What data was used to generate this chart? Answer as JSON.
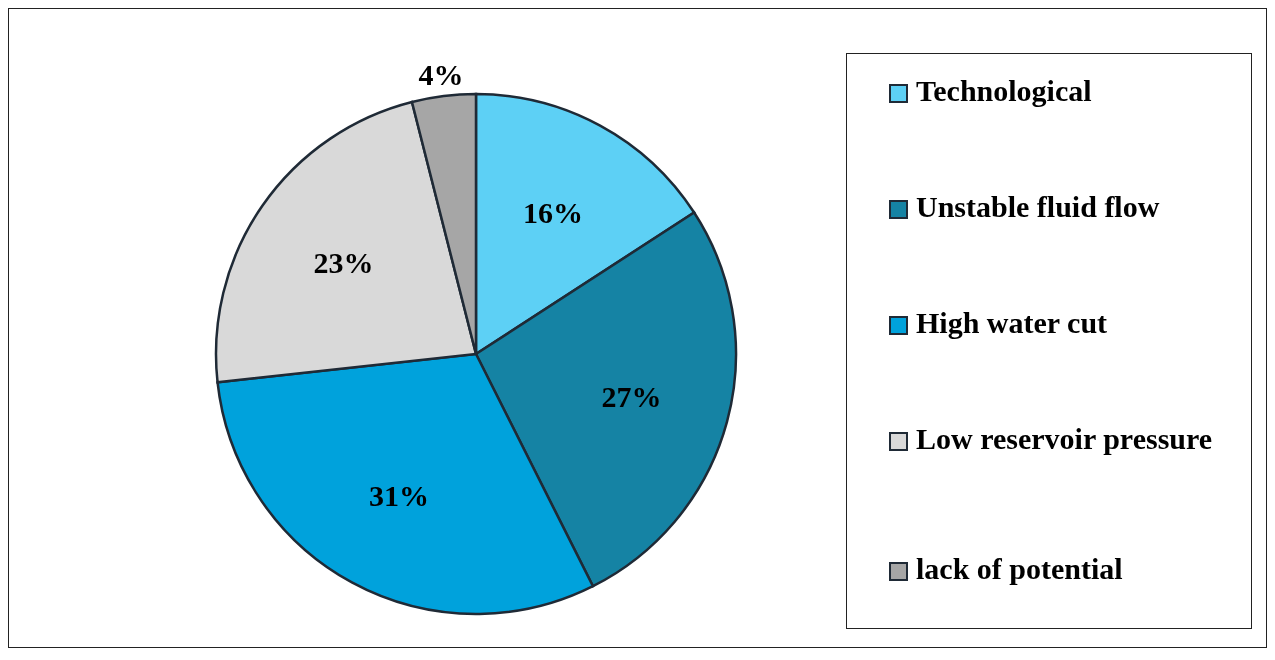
{
  "chart_data": {
    "type": "pie",
    "categories": [
      "Technological",
      "Unstable fluid flow",
      "High water cut",
      "Low reservoir pressure",
      "lack of potential"
    ],
    "values": [
      16,
      27,
      31,
      23,
      4
    ],
    "colors": [
      "#5dd0f5",
      "#1583a4",
      "#00a2dc",
      "#d9d9d9",
      "#a6a6a6"
    ],
    "value_labels": [
      "16%",
      "27%",
      "31%",
      "23%",
      "4%"
    ],
    "legend": "right"
  }
}
